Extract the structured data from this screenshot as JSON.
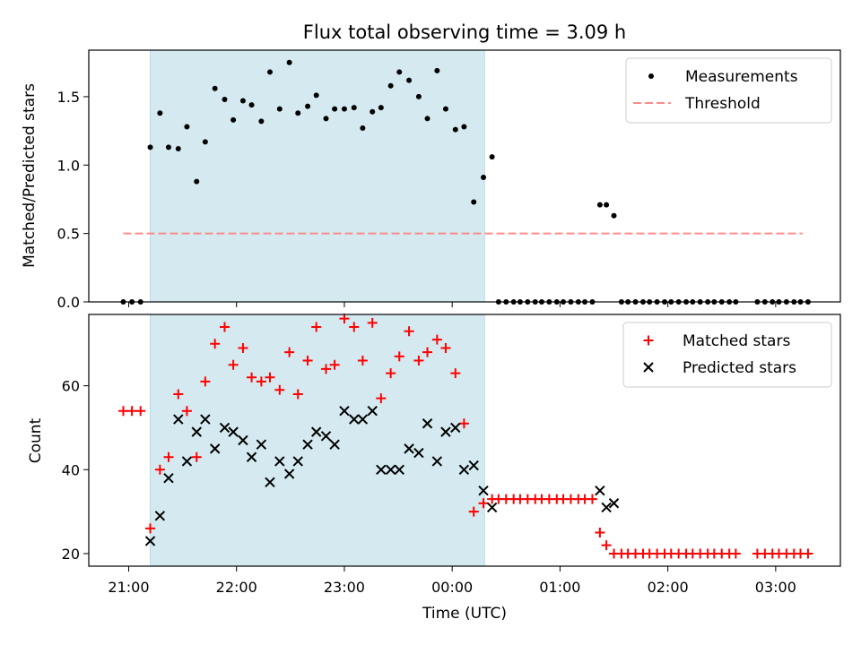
{
  "chart_data": [
    {
      "type": "scatter",
      "title": "Flux total observing time = 3.09 h",
      "xlabel": "",
      "ylabel": "Matched/Predicted stars",
      "x_unit": "hours after 21:00 UTC",
      "xlim": [
        -0.37,
        6.6
      ],
      "ylim": [
        0.0,
        1.84
      ],
      "yticks": [
        0.0,
        0.5,
        1.0,
        1.5
      ],
      "ytick_labels": [
        "0.0",
        "0.5",
        "1.0",
        "1.5"
      ],
      "show_x_tick_labels": false,
      "observing_window": [
        0.2,
        3.3
      ],
      "observing_window_color": "#d4eaf0",
      "legend_position": "upper right",
      "legend": [
        {
          "label": "Measurements",
          "marker": "dot",
          "color": "#000000"
        },
        {
          "label": "Threshold",
          "marker": "dashed-line",
          "color": "#ff7f7f"
        }
      ],
      "series": [
        {
          "name": "Measurements",
          "marker": "dot",
          "color": "#000000",
          "x": [
            -0.05,
            0.03,
            0.11,
            0.2,
            0.29,
            0.37,
            0.46,
            0.54,
            0.63,
            0.71,
            0.8,
            0.89,
            0.97,
            1.06,
            1.14,
            1.23,
            1.31,
            1.4,
            1.49,
            1.57,
            1.66,
            1.74,
            1.83,
            1.91,
            2.0,
            2.09,
            2.17,
            2.26,
            2.34,
            2.43,
            2.51,
            2.6,
            2.69,
            2.77,
            2.86,
            2.94,
            3.03,
            3.11,
            3.2,
            3.29,
            3.37,
            3.43,
            3.5,
            3.57,
            3.63,
            3.7,
            3.77,
            3.83,
            3.9,
            3.97,
            4.03,
            4.1,
            4.17,
            4.23,
            4.3,
            4.37,
            4.43,
            4.5,
            4.57,
            4.63,
            4.7,
            4.77,
            4.83,
            4.9,
            4.97,
            5.03,
            5.1,
            5.17,
            5.23,
            5.3,
            5.37,
            5.43,
            5.5,
            5.57,
            5.63,
            5.83,
            5.9,
            5.97,
            6.03,
            6.1,
            6.17,
            6.23,
            6.3
          ],
          "y": [
            0.0,
            0.0,
            0.0,
            1.13,
            1.38,
            1.13,
            1.12,
            1.28,
            0.88,
            1.17,
            1.56,
            1.48,
            1.33,
            1.47,
            1.44,
            1.32,
            1.68,
            1.41,
            1.75,
            1.38,
            1.43,
            1.51,
            1.34,
            1.41,
            1.41,
            1.42,
            1.27,
            1.39,
            1.42,
            1.58,
            1.68,
            1.62,
            1.5,
            1.34,
            1.69,
            1.41,
            1.26,
            1.28,
            0.73,
            0.91,
            1.06,
            0.0,
            0.0,
            0.0,
            0.0,
            0.0,
            0.0,
            0.0,
            0.0,
            0.0,
            0.0,
            0.0,
            0.0,
            0.0,
            0.0,
            0.71,
            0.71,
            0.63,
            0.0,
            0.0,
            0.0,
            0.0,
            0.0,
            0.0,
            0.0,
            0.0,
            0.0,
            0.0,
            0.0,
            0.0,
            0.0,
            0.0,
            0.0,
            0.0,
            0.0,
            0.0,
            0.0,
            0.0,
            0.0,
            0.0,
            0.0,
            0.0,
            0.0
          ]
        },
        {
          "name": "Threshold",
          "type": "line",
          "style": "dashed",
          "color": "#ff7f7f",
          "x": [
            -0.05,
            6.25
          ],
          "y": [
            0.5,
            0.5
          ]
        }
      ]
    },
    {
      "type": "scatter",
      "title": "",
      "xlabel": "Time (UTC)",
      "ylabel": "Count",
      "x_unit": "hours after 21:00 UTC",
      "xlim": [
        -0.37,
        6.6
      ],
      "ylim": [
        17,
        77
      ],
      "yticks": [
        20,
        40,
        60
      ],
      "ytick_labels": [
        "20",
        "40",
        "60"
      ],
      "xticks": [
        0,
        1,
        2,
        3,
        4,
        5,
        6
      ],
      "xtick_labels": [
        "21:00",
        "22:00",
        "23:00",
        "00:00",
        "01:00",
        "02:00",
        "03:00"
      ],
      "observing_window": [
        0.2,
        3.3
      ],
      "observing_window_color": "#d4eaf0",
      "legend_position": "upper right",
      "legend": [
        {
          "label": "Matched stars",
          "marker": "plus",
          "color": "#ff0000"
        },
        {
          "label": "Predicted stars",
          "marker": "x",
          "color": "#000000"
        }
      ],
      "series": [
        {
          "name": "Matched stars",
          "marker": "plus",
          "color": "#ff0000",
          "x": [
            -0.05,
            0.03,
            0.11,
            0.2,
            0.29,
            0.37,
            0.46,
            0.54,
            0.63,
            0.71,
            0.8,
            0.89,
            0.97,
            1.06,
            1.14,
            1.23,
            1.31,
            1.4,
            1.49,
            1.57,
            1.66,
            1.74,
            1.83,
            1.91,
            2.0,
            2.09,
            2.17,
            2.26,
            2.34,
            2.43,
            2.51,
            2.6,
            2.69,
            2.77,
            2.86,
            2.94,
            3.03,
            3.11,
            3.2,
            3.29,
            3.37,
            3.43,
            3.5,
            3.57,
            3.63,
            3.7,
            3.77,
            3.83,
            3.9,
            3.97,
            4.03,
            4.1,
            4.17,
            4.23,
            4.3,
            4.37,
            4.43,
            4.5,
            4.57,
            4.63,
            4.7,
            4.77,
            4.83,
            4.9,
            4.97,
            5.03,
            5.1,
            5.17,
            5.23,
            5.3,
            5.37,
            5.43,
            5.5,
            5.57,
            5.63,
            5.83,
            5.9,
            5.97,
            6.03,
            6.1,
            6.17,
            6.23,
            6.3
          ],
          "y": [
            54,
            54,
            54,
            26,
            40,
            43,
            58,
            54,
            43,
            61,
            70,
            74,
            65,
            69,
            62,
            61,
            62,
            59,
            68,
            58,
            66,
            74,
            64,
            65,
            76,
            74,
            66,
            75,
            57,
            63,
            67,
            73,
            66,
            68,
            71,
            69,
            63,
            51,
            30,
            32,
            33,
            33,
            33,
            33,
            33,
            33,
            33,
            33,
            33,
            33,
            33,
            33,
            33,
            33,
            33,
            25,
            22,
            20,
            20,
            20,
            20,
            20,
            20,
            20,
            20,
            20,
            20,
            20,
            20,
            20,
            20,
            20,
            20,
            20,
            20,
            20,
            20,
            20,
            20,
            20,
            20,
            20,
            20
          ]
        },
        {
          "name": "Predicted stars",
          "marker": "x",
          "color": "#000000",
          "x": [
            0.2,
            0.29,
            0.37,
            0.46,
            0.54,
            0.63,
            0.71,
            0.8,
            0.89,
            0.97,
            1.06,
            1.14,
            1.23,
            1.31,
            1.4,
            1.49,
            1.57,
            1.66,
            1.74,
            1.83,
            1.91,
            2.0,
            2.09,
            2.17,
            2.26,
            2.34,
            2.43,
            2.51,
            2.6,
            2.69,
            2.77,
            2.86,
            2.94,
            3.03,
            3.11,
            3.2,
            3.29,
            3.37,
            4.37,
            4.43,
            4.5
          ],
          "y": [
            23,
            29,
            38,
            52,
            42,
            49,
            52,
            45,
            50,
            49,
            47,
            43,
            46,
            37,
            42,
            39,
            42,
            46,
            49,
            48,
            46,
            54,
            52,
            52,
            54,
            40,
            40,
            40,
            45,
            44,
            51,
            42,
            49,
            50,
            40,
            41,
            35,
            31,
            35,
            31,
            32
          ]
        }
      ]
    }
  ]
}
